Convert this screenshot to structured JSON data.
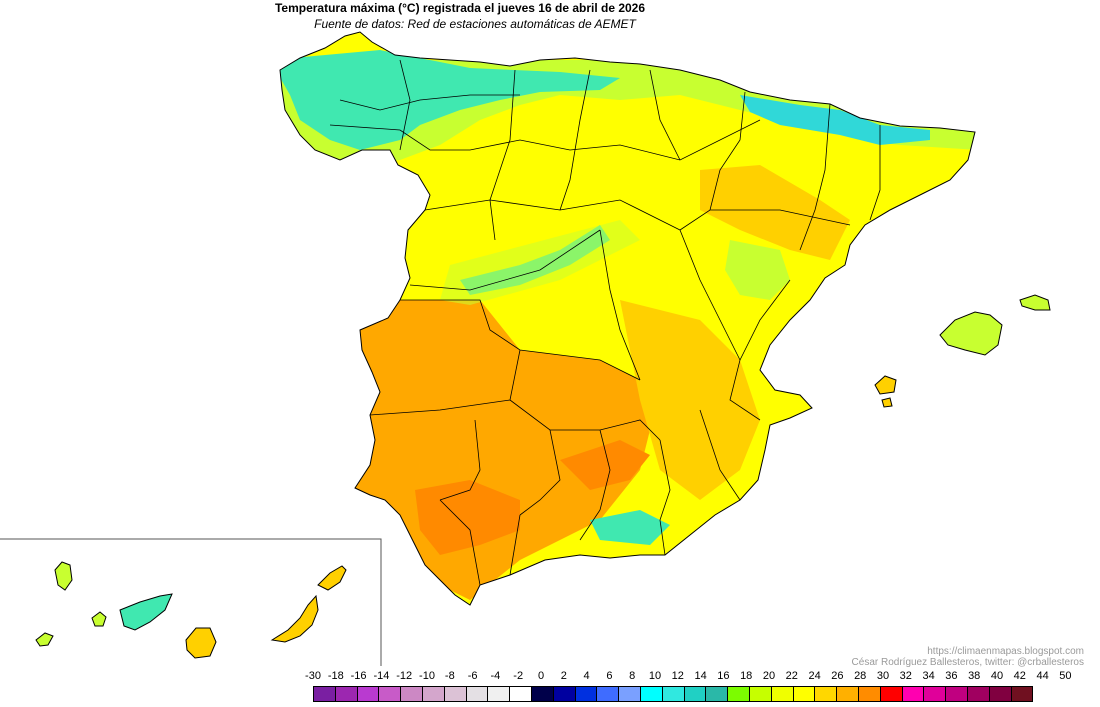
{
  "title": "Temperatura máxima (°C) registrada el jueves 16 de abril de 2026",
  "subtitle": "Fuente de datos: Red de estaciones automáticas de AEMET",
  "credit": {
    "url": "https://climaenmapas.blogspot.com",
    "author": "César Rodríguez Ballesteros, twitter: @crballesteros"
  },
  "legend": {
    "ticks": [
      "-30",
      "-18",
      "-16",
      "-14",
      "-12",
      "-10",
      "-8",
      "-6",
      "-4",
      "-2",
      "0",
      "2",
      "4",
      "6",
      "8",
      "10",
      "12",
      "14",
      "16",
      "18",
      "20",
      "22",
      "24",
      "26",
      "28",
      "30",
      "32",
      "34",
      "36",
      "38",
      "40",
      "42",
      "44",
      "50"
    ],
    "colors": [
      "#7a1fa2",
      "#9c27b0",
      "#b93ad0",
      "#c85bc8",
      "#cc88c4",
      "#d4a6cc",
      "#dcc2d6",
      "#e4e0e4",
      "#f0f0f0",
      "#ffffff",
      "#00004a",
      "#0000a0",
      "#0030e0",
      "#3f6cff",
      "#7aa0ff",
      "#00ffff",
      "#30e8e0",
      "#20d0c4",
      "#2ab8a8",
      "#7cfc00",
      "#c6ff00",
      "#f0ff00",
      "#ffff00",
      "#ffd700",
      "#ffb000",
      "#ff8c00",
      "#ff0000",
      "#ff00b0",
      "#e0009a",
      "#c00080",
      "#a00060",
      "#800040",
      "#701020"
    ]
  },
  "map_colors": {
    "land": "#ffff00",
    "warm": "#ffd000",
    "hot": "#ffa800",
    "hottest": "#ff8a00",
    "mild": "#c8ff30",
    "cool": "#40e8b0",
    "coolest": "#30d8d8",
    "border": "#000000"
  }
}
